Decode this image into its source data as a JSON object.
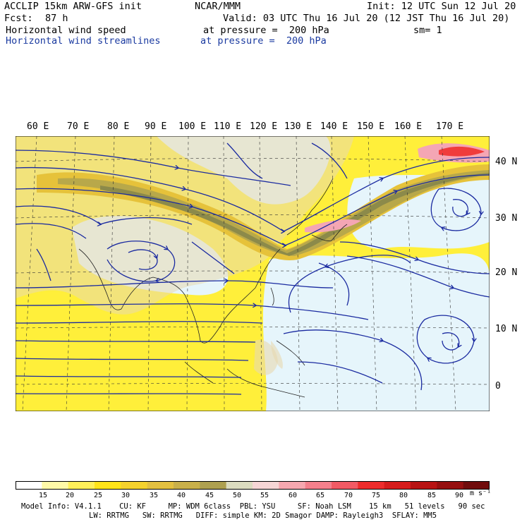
{
  "header": {
    "line1_left": "ACCLIP 15km ARW-GFS init",
    "line1_center": "NCAR/MMM",
    "line1_right": "Init: 12 UTC Sun 12 Jul 20",
    "fcst_label": "Fcst:",
    "fcst_value": "87 h",
    "valid": "Valid: 03 UTC Thu 16 Jul 20 (12 JST Thu 16 Jul 20)",
    "field1": "Horizontal wind speed",
    "field1_level": "at pressure =  200 hPa",
    "smoothing": "sm= 1",
    "field2": "Horizontal wind streamlines",
    "field2_level": "at pressure =  200 hPa"
  },
  "map": {
    "longitude_labels": [
      "60 E",
      "70 E",
      "80 E",
      "90 E",
      "100 E",
      "110 E",
      "120 E",
      "130 E",
      "140 E",
      "150 E",
      "160 E",
      "170 E"
    ],
    "latitude_labels": [
      "40 N",
      "30 N",
      "20 N",
      "10 N",
      "0"
    ],
    "colors": {
      "calm": "#ffffff",
      "light_blue": "#e6f5fb",
      "land": "#e8d8b0",
      "yellow": "#ffef3a",
      "gold": "#e6c23a",
      "olive": "#b8a84a",
      "dark_olive": "#8c8a4a",
      "pink": "#f4a6b4",
      "red": "#f03c3c",
      "streamline": "#1a2aa0"
    }
  },
  "colorbar": {
    "tick_labels": [
      "15",
      "20",
      "25",
      "30",
      "35",
      "40",
      "45",
      "50",
      "55",
      "60",
      "65",
      "70",
      "75",
      "80",
      "85",
      "90"
    ],
    "units": "m s⁻¹",
    "colors": [
      "#ffffff",
      "#fff9a8",
      "#fff05a",
      "#ffe419",
      "#f5d22d",
      "#e3c040",
      "#c9b04a",
      "#aea050",
      "#dcdcc0",
      "#f7d6d6",
      "#f7a8b0",
      "#f5808c",
      "#f25a64",
      "#ee2c2c",
      "#d61c1c",
      "#b81414",
      "#961010",
      "#700c0c"
    ]
  },
  "footer": {
    "line1": "Model Info: V4.1.1    CU: KF     MP: WDM 6class  PBL: YSU     SF: Noah LSM    15 km   51 levels   90 sec",
    "line2": "LW: RRTMG   SW: RRTMG   DIFF: simple KM: 2D Smagor DAMP: Rayleigh3  SFLAY: MM5"
  }
}
